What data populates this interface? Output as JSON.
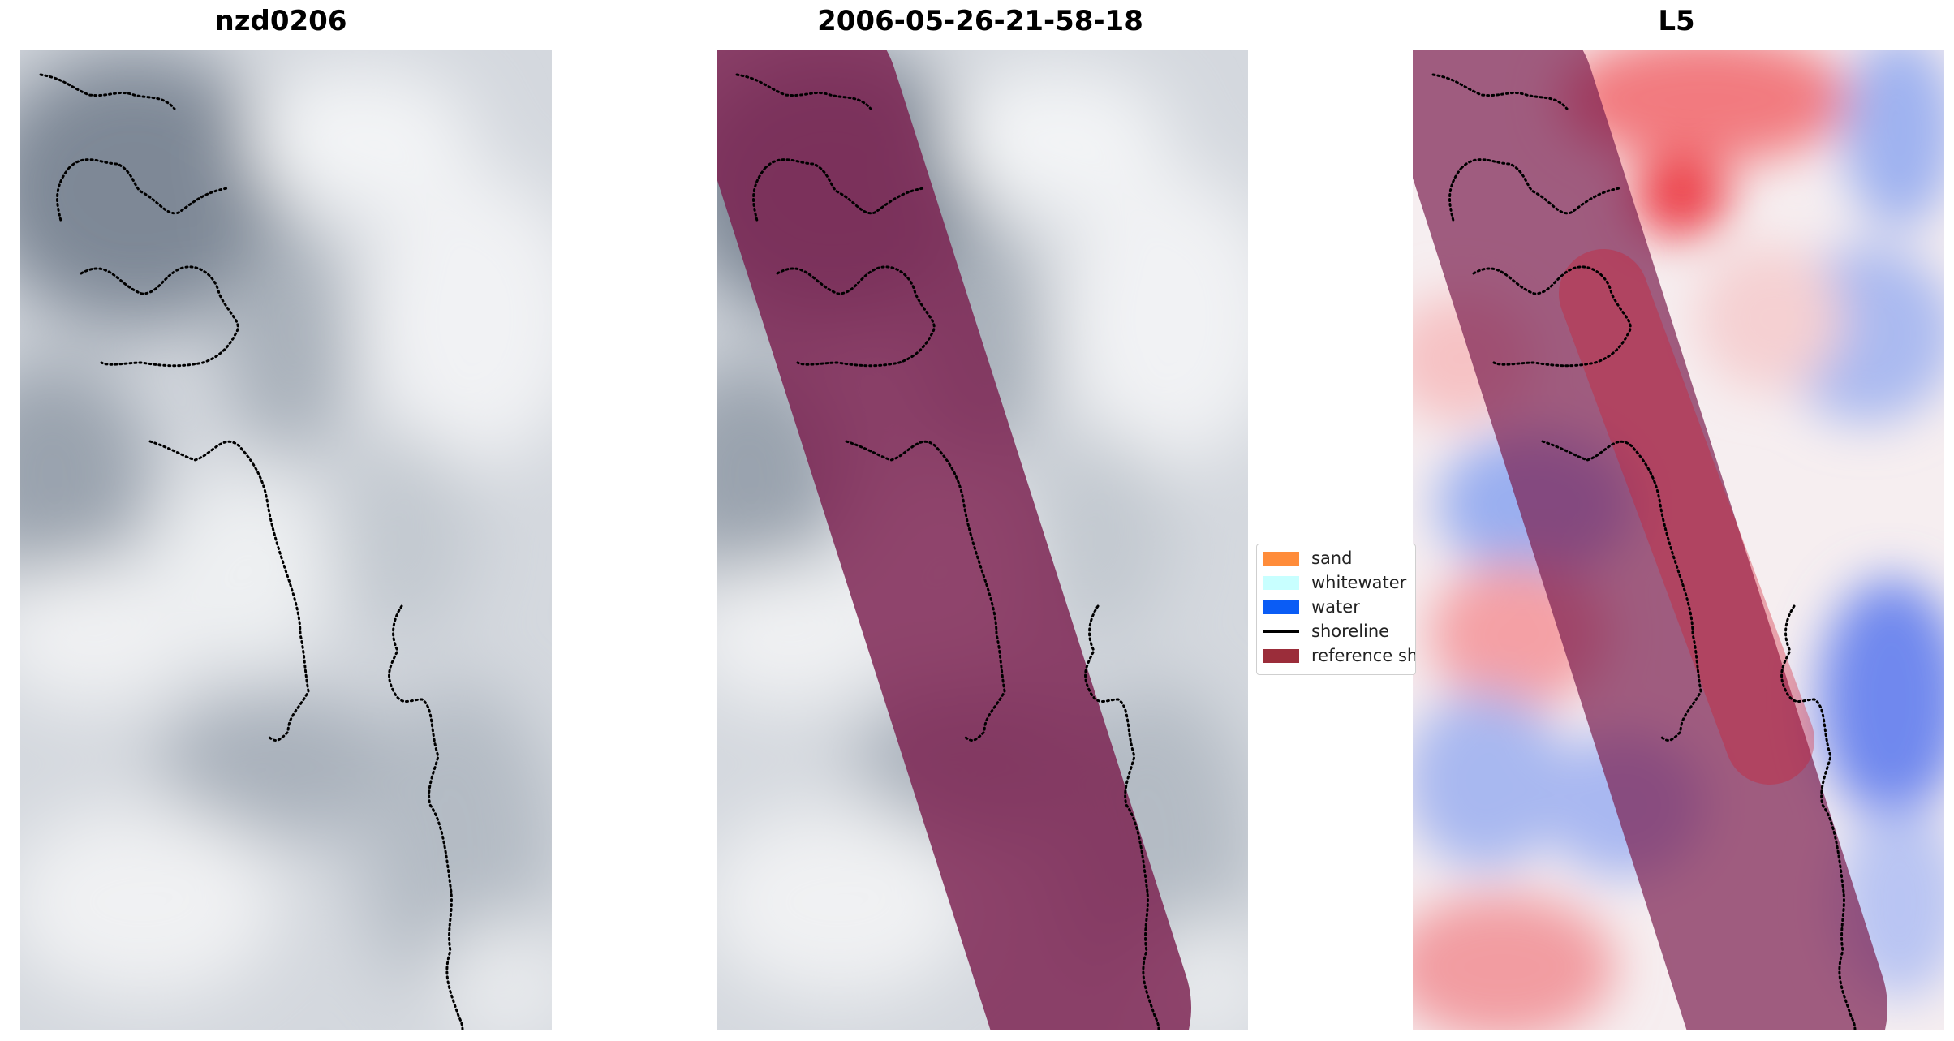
{
  "panels": [
    {
      "title": "nzd0206",
      "kind": "grayscale-image",
      "overlay": false
    },
    {
      "title": "2006-05-26-21-58-18",
      "kind": "grayscale-image",
      "overlay": true
    },
    {
      "title": "L5",
      "kind": "diverging-red-blue-image",
      "overlay": true
    }
  ],
  "legend": {
    "items": [
      {
        "label": "sand",
        "color": "#ff8c3a",
        "type": "patch"
      },
      {
        "label": "whitewater",
        "color": "#c8ffff",
        "type": "patch"
      },
      {
        "label": "water",
        "color": "#0a5cf5",
        "type": "patch"
      },
      {
        "label": "shoreline",
        "color": "#000000",
        "type": "line"
      },
      {
        "label": "reference sh",
        "color": "#9b2d3a",
        "type": "patch"
      }
    ]
  },
  "colors": {
    "reference_overlay": "#7a1e4e",
    "diverging_positive": "#e8192c",
    "diverging_negative": "#1e3cf0"
  }
}
